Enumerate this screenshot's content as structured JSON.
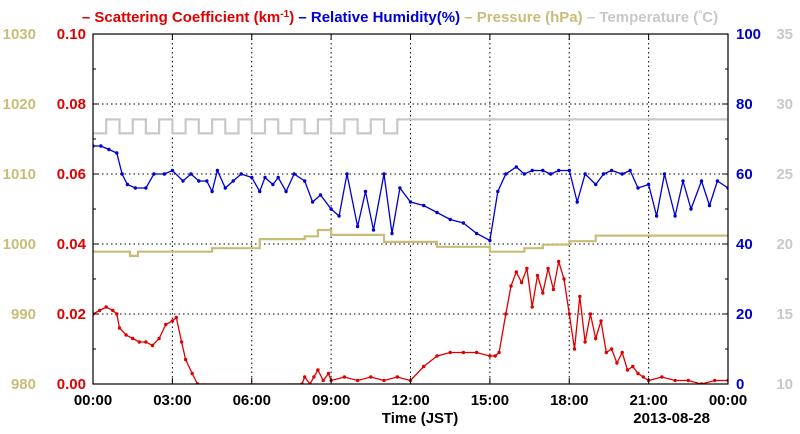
{
  "chart_data": {
    "type": "line",
    "date_label": "2013-08-28",
    "xlabel": "Time (JST)",
    "x_ticks": [
      "00:00",
      "03:00",
      "06:00",
      "09:00",
      "12:00",
      "15:00",
      "18:00",
      "21:00",
      "00:00"
    ],
    "x_range_hours": [
      0,
      24
    ],
    "legend": [
      {
        "text": "Scattering Coefficient (km",
        "sup": "-1",
        "suffix": ")",
        "color": "#e00000"
      },
      {
        "text": "Relative Humidity(%)",
        "sup": "",
        "suffix": "",
        "color": "#0000d0"
      },
      {
        "text": "Pressure (hPa)",
        "sup": "",
        "suffix": "",
        "color": "#c8bd78"
      },
      {
        "text": "Temperature (",
        "sup": "°",
        "suffix": "C)",
        "color": "#c8c8c8"
      }
    ],
    "axes": {
      "pressure": {
        "side": "left-outer",
        "color": "#c8bd78",
        "range": [
          980,
          1030
        ],
        "ticks": [
          "980",
          "990",
          "1000",
          "1010",
          "1020",
          "1030"
        ]
      },
      "scattering": {
        "side": "left-inner",
        "color": "#e00000",
        "range": [
          0.0,
          0.1
        ],
        "ticks": [
          "0.00",
          "0.02",
          "0.04",
          "0.06",
          "0.08",
          "0.10"
        ]
      },
      "humidity": {
        "side": "right-inner",
        "color": "#0000d0",
        "range": [
          0,
          100
        ],
        "ticks": [
          "0",
          "20",
          "40",
          "60",
          "80",
          "100"
        ]
      },
      "temperature": {
        "side": "right-outer",
        "color": "#c8c8c8",
        "range": [
          10,
          35
        ],
        "ticks": [
          "10",
          "15",
          "20",
          "25",
          "30",
          "35"
        ]
      }
    },
    "series": [
      {
        "name": "Scattering Coefficient (km-1)",
        "axis": "scattering",
        "color": "#e00000",
        "markers": true,
        "x": [
          0.0,
          0.25,
          0.5,
          0.75,
          0.9,
          1.0,
          1.25,
          1.5,
          1.75,
          2.0,
          2.25,
          2.5,
          2.75,
          3.0,
          3.15,
          3.35,
          3.5,
          3.75,
          3.95,
          7.9,
          8.0,
          8.2,
          8.35,
          8.5,
          8.7,
          8.9,
          9.0,
          9.5,
          10.0,
          10.5,
          11.0,
          11.5,
          12.0,
          12.5,
          13.0,
          13.5,
          14.0,
          14.5,
          15.0,
          15.2,
          15.35,
          15.6,
          15.8,
          16.0,
          16.2,
          16.4,
          16.6,
          16.8,
          17.0,
          17.2,
          17.4,
          17.6,
          17.8,
          18.0,
          18.2,
          18.4,
          18.6,
          18.8,
          19.0,
          19.2,
          19.4,
          19.6,
          19.8,
          20.0,
          20.2,
          20.4,
          20.6,
          20.8,
          21.0,
          21.5,
          22.0,
          22.5,
          23.0,
          23.5,
          24.0
        ],
        "y": [
          0.02,
          0.021,
          0.022,
          0.021,
          0.02,
          0.016,
          0.014,
          0.013,
          0.012,
          0.012,
          0.011,
          0.013,
          0.017,
          0.018,
          0.019,
          0.012,
          0.007,
          0.003,
          0.0,
          0.0,
          0.002,
          0.0,
          0.002,
          0.004,
          0.001,
          0.003,
          0.001,
          0.002,
          0.001,
          0.002,
          0.001,
          0.002,
          0.001,
          0.005,
          0.008,
          0.009,
          0.009,
          0.009,
          0.008,
          0.008,
          0.009,
          0.02,
          0.028,
          0.032,
          0.029,
          0.033,
          0.022,
          0.031,
          0.026,
          0.033,
          0.027,
          0.035,
          0.03,
          0.02,
          0.01,
          0.025,
          0.012,
          0.02,
          0.013,
          0.018,
          0.009,
          0.01,
          0.006,
          0.009,
          0.004,
          0.005,
          0.003,
          0.002,
          0.001,
          0.002,
          0.001,
          0.001,
          0.0,
          0.001,
          0.001
        ]
      },
      {
        "name": "Relative Humidity(%)",
        "axis": "humidity",
        "color": "#0000d0",
        "markers": true,
        "x": [
          0.0,
          0.3,
          0.6,
          0.9,
          1.1,
          1.3,
          1.6,
          2.0,
          2.3,
          2.7,
          3.0,
          3.4,
          3.7,
          4.0,
          4.3,
          4.5,
          4.7,
          5.0,
          5.3,
          5.6,
          6.0,
          6.3,
          6.5,
          6.8,
          7.0,
          7.3,
          7.6,
          8.0,
          8.3,
          8.6,
          9.0,
          9.3,
          9.6,
          10.0,
          10.3,
          10.6,
          11.0,
          11.3,
          11.6,
          12.0,
          12.5,
          13.0,
          13.5,
          14.0,
          14.5,
          15.0,
          15.3,
          15.6,
          16.0,
          16.3,
          16.6,
          17.0,
          17.3,
          17.6,
          18.0,
          18.3,
          18.6,
          19.0,
          19.3,
          19.6,
          20.0,
          20.3,
          20.6,
          21.0,
          21.3,
          21.6,
          22.0,
          22.3,
          22.6,
          23.0,
          23.3,
          23.6,
          24.0
        ],
        "y": [
          68,
          68,
          67,
          66,
          60,
          57,
          56,
          56,
          60,
          60,
          61,
          58,
          60,
          58,
          58,
          55,
          61,
          56,
          58,
          60,
          59,
          55,
          59,
          57,
          59,
          55,
          60,
          58,
          52,
          54,
          50,
          48,
          60,
          45,
          55,
          44,
          60,
          43,
          56,
          52,
          51,
          49,
          47,
          46,
          43,
          41,
          55,
          60,
          62,
          60,
          61,
          61,
          60,
          61,
          61,
          52,
          60,
          57,
          60,
          61,
          60,
          61,
          56,
          57,
          48,
          60,
          48,
          58,
          50,
          58,
          51,
          58,
          56
        ]
      },
      {
        "name": "Pressure (hPa)",
        "axis": "pressure",
        "color": "#c8bd78",
        "markers": false,
        "step": true,
        "x": [
          0.0,
          1.4,
          1.7,
          4.5,
          6.3,
          8.0,
          8.5,
          9.0,
          11.0,
          13.0,
          15.0,
          16.3,
          17.0,
          18.0,
          19.0,
          24.0
        ],
        "y": [
          998.9,
          998.3,
          998.9,
          999.4,
          1000.7,
          1001.1,
          1002.0,
          1001.3,
          1000.3,
          999.6,
          998.9,
          999.4,
          999.9,
          1000.4,
          1001.2,
          1001.2
        ]
      },
      {
        "name": "Temperature (°C)",
        "axis": "temperature",
        "color": "#c8c8c8",
        "markers": false,
        "step": true,
        "x": [
          0.0,
          0.5,
          1.0,
          1.5,
          2.0,
          2.5,
          3.0,
          3.5,
          4.0,
          4.5,
          5.0,
          5.5,
          6.0,
          6.5,
          7.0,
          7.5,
          8.0,
          8.5,
          9.0,
          9.5,
          10.0,
          10.5,
          11.0,
          11.5,
          12.0,
          24.0
        ],
        "y": [
          27.9,
          28.9,
          27.9,
          28.9,
          27.9,
          28.9,
          27.9,
          28.9,
          27.9,
          28.9,
          27.9,
          28.9,
          27.9,
          28.9,
          27.9,
          28.9,
          27.9,
          28.9,
          27.9,
          28.9,
          27.9,
          28.9,
          27.9,
          28.9,
          28.9,
          28.9
        ]
      }
    ],
    "grid": true
  }
}
